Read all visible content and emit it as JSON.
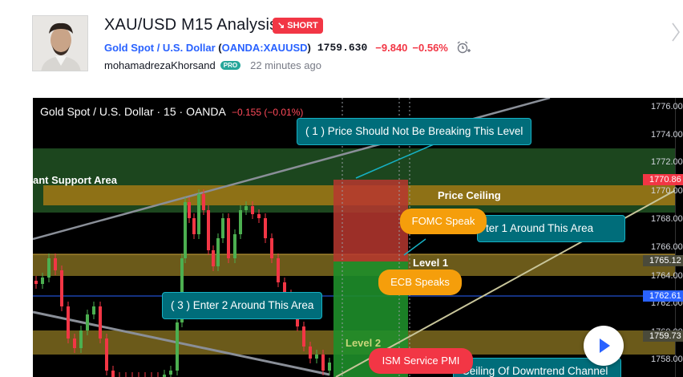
{
  "idea": {
    "title": "XAU/USD M15 Analysis",
    "direction_badge": "SHORT",
    "direction_icon": "arrow-down-right-icon",
    "symbol_name": "Gold Spot / U.S. Dollar",
    "symbol_ticker": "OANDA:XAUUSD",
    "last_price": "1759.630",
    "change": "−9.840",
    "change_percent": "−0.56%",
    "alert_icon": "alarm-clock-plus-icon",
    "author": "mohamadrezaKhorsand",
    "author_badge": "PRO",
    "published": "22 minutes ago",
    "avatar_icon": "user-avatar"
  },
  "chart": {
    "legend_symbol": "Gold Spot / U.S. Dollar · 15 · OANDA",
    "legend_change": "−0.155 (−0.01%)",
    "zone_labels": {
      "support_area": "ant Support Area",
      "price_ceiling": "Price Ceiling",
      "level_1": "Level 1",
      "level_2": "Level 2"
    },
    "notes": {
      "note_1": "( 1 ) Price Should Not Be Breaking This Level",
      "note_2": "ter 1  Around This Area",
      "note_3": "( 3 ) Enter 2 Around This Area",
      "note_4": "Ceiling Of Downtrend Channel"
    },
    "callouts": {
      "fomc": "FOMC Speak",
      "ecb": "ECB Speaks",
      "ism": "ISM Service PMI"
    },
    "price_scale": {
      "ticks": [
        "1776.00",
        "1774.00",
        "1772.00",
        "1770.00",
        "1768.00",
        "1766.00",
        "1764.00",
        "1762.00",
        "1760.00",
        "1758.00"
      ],
      "tag_red": "1770.86",
      "tag_level1": "1765.12",
      "tag_blue": "1762.61",
      "tag_level2": "1759.73"
    },
    "colors": {
      "background": "#000000",
      "candle_up": "#4caf50",
      "candle_down": "#f23645",
      "zone_green": "#2a6b2c",
      "zone_gold": "#9c7a1e",
      "note_teal": "#006d7a",
      "short_red": "#f23645",
      "long_green": "#1e8e2a"
    }
  },
  "controls": {
    "play_icon": "play-icon",
    "next_icon": "chevron-right-icon"
  }
}
